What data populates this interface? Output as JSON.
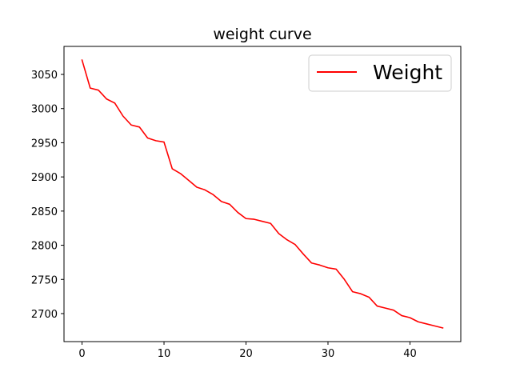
{
  "chart_data": {
    "type": "line",
    "title": "weight curve",
    "xlabel": "",
    "ylabel": "",
    "xlim": [
      -2.2,
      46.2
    ],
    "ylim": [
      2659,
      3091
    ],
    "xticks": [
      0,
      10,
      20,
      30,
      40
    ],
    "yticks": [
      2700,
      2750,
      2800,
      2850,
      2900,
      2950,
      3000,
      3050
    ],
    "grid": false,
    "legend_position": "top-right",
    "series": [
      {
        "name": "Weight",
        "color": "#ff0000",
        "x": [
          0,
          1,
          2,
          3,
          4,
          5,
          6,
          7,
          8,
          9,
          10,
          11,
          12,
          13,
          14,
          15,
          16,
          17,
          18,
          19,
          20,
          21,
          22,
          23,
          24,
          25,
          26,
          27,
          28,
          29,
          30,
          31,
          32,
          33,
          34,
          35,
          36,
          37,
          38,
          39,
          40,
          41,
          42,
          43,
          44
        ],
        "values": [
          3071,
          3030,
          3027,
          3014,
          3008,
          2989,
          2976,
          2973,
          2957,
          2953,
          2951,
          2912,
          2905,
          2895,
          2885,
          2881,
          2874,
          2864,
          2860,
          2848,
          2839,
          2838,
          2835,
          2832,
          2817,
          2808,
          2801,
          2787,
          2774,
          2771,
          2767,
          2765,
          2750,
          2732,
          2729,
          2724,
          2711,
          2708,
          2705,
          2697,
          2694,
          2688,
          2685,
          2682,
          2679
        ]
      }
    ]
  }
}
